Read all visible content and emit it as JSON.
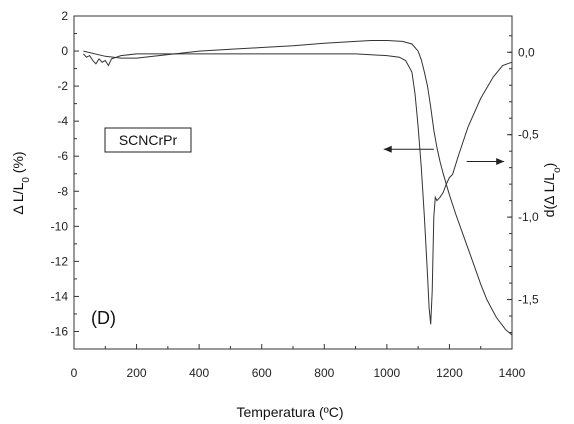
{
  "chart_data": {
    "type": "line",
    "xlabel": "Temperatura (ºC)",
    "ylabel_left": "Δ L/L0 (%)",
    "ylabel_right": "d(Δ L/Lo)",
    "xlim": [
      0,
      1400
    ],
    "ylim_left": [
      -17,
      2
    ],
    "ylim_right": [
      -1.8,
      0.22
    ],
    "x_ticks": [
      0,
      200,
      400,
      600,
      800,
      1000,
      1200,
      1400
    ],
    "y_left_ticks": [
      2,
      0,
      -2,
      -4,
      -6,
      -8,
      -10,
      -12,
      -14,
      -16
    ],
    "y_right_ticks": [
      0.0,
      -0.5,
      -1.0,
      -1.5
    ],
    "x_tick_labels": [
      "0",
      "200",
      "400",
      "600",
      "800",
      "1000",
      "1200",
      "1400"
    ],
    "y_left_tick_labels": [
      "2",
      "0",
      "-2",
      "-4",
      "-6",
      "-8",
      "-10",
      "-12",
      "-14",
      "-16"
    ],
    "y_right_tick_labels": [
      "0,0",
      "-0,5",
      "-1,0",
      "-1,5"
    ],
    "legend_box_label": "SCNCrPr",
    "panel_label": "(D)",
    "series": [
      {
        "axis": "left",
        "x": [
          30,
          100,
          150,
          200,
          300,
          400,
          500,
          600,
          700,
          800,
          900,
          950,
          1000,
          1050,
          1080,
          1100,
          1110,
          1120,
          1130,
          1140,
          1150,
          1160,
          1170,
          1180,
          1200,
          1220,
          1250,
          1280,
          1300,
          1320,
          1350,
          1380,
          1400
        ],
        "y": [
          0,
          -0.3,
          -0.4,
          -0.4,
          -0.2,
          0.0,
          0.1,
          0.2,
          0.3,
          0.45,
          0.55,
          0.6,
          0.6,
          0.55,
          0.4,
          0.0,
          -0.5,
          -1.2,
          -2.0,
          -3.2,
          -4.5,
          -5.5,
          -6.3,
          -7.0,
          -8.2,
          -9.3,
          -10.8,
          -12.3,
          -13.3,
          -14.2,
          -15.2,
          -15.9,
          -16.2
        ]
      },
      {
        "axis": "right",
        "x": [
          30,
          40,
          50,
          60,
          70,
          80,
          90,
          100,
          110,
          120,
          150,
          200,
          300,
          400,
          500,
          600,
          700,
          800,
          900,
          1000,
          1040,
          1060,
          1080,
          1090,
          1100,
          1110,
          1120,
          1130,
          1135,
          1140,
          1145,
          1150,
          1155,
          1160,
          1170,
          1180,
          1190,
          1200,
          1210,
          1230,
          1260,
          1300,
          1340,
          1370,
          1400
        ],
        "y": [
          -0.01,
          -0.03,
          -0.02,
          -0.05,
          -0.07,
          -0.04,
          -0.06,
          -0.05,
          -0.08,
          -0.04,
          -0.02,
          -0.01,
          -0.01,
          -0.01,
          -0.01,
          -0.01,
          -0.01,
          -0.01,
          -0.01,
          -0.02,
          -0.03,
          -0.05,
          -0.12,
          -0.25,
          -0.45,
          -0.7,
          -1.0,
          -1.35,
          -1.55,
          -1.65,
          -1.45,
          -1.0,
          -0.88,
          -0.9,
          -0.88,
          -0.85,
          -0.8,
          -0.76,
          -0.74,
          -0.62,
          -0.45,
          -0.28,
          -0.15,
          -0.08,
          -0.06
        ]
      }
    ],
    "arrows": [
      {
        "direction": "left",
        "y_left": -5.6,
        "x_from": 1150,
        "x_to": 990
      },
      {
        "direction": "right",
        "y_left": -6.3,
        "x_from": 1255,
        "x_to": 1375
      }
    ]
  }
}
